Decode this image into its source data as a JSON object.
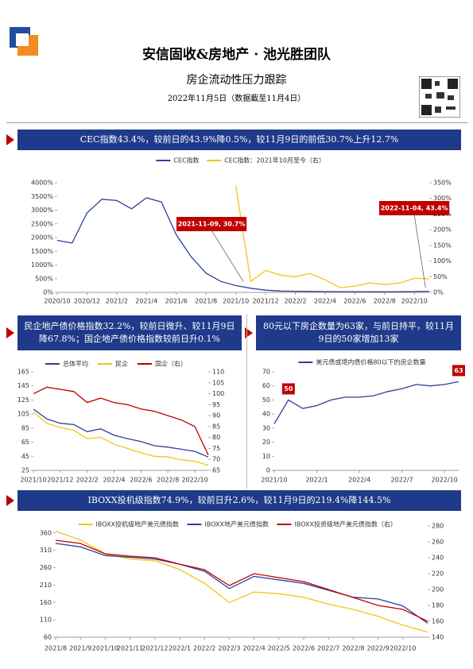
{
  "header": {
    "title": "安信固收&房地产 · 池光胜团队",
    "subtitle": "房企流动性压力跟踪",
    "date": "2022年11月5日（数据截至11月4日）"
  },
  "banners": [
    "CEC指数43.4%，较前日的43.9%降0.5%，较11月9日的前低30.7%上升12.7%",
    "民企地产债价格指数32.2%，较前日微升、较11月9日降67.8%；国企地产债价格指数较前日升0.1%",
    "80元以下房企数量为63家，与前日持平，较11月9日的50家增加13家",
    "IBOXX投机级指数74.9%，较前日升2.6%，较11月9日的219.4%降144.5%"
  ],
  "chart_data": [
    {
      "type": "line",
      "categories": [
        "2020/10",
        null,
        "2020/12",
        null,
        "2021/2",
        null,
        "2021/4",
        null,
        "2021/6",
        null,
        "2021/8",
        null,
        "2021/10",
        null,
        "2021/12",
        null,
        "2022/2",
        null,
        "2022/4",
        null,
        "2022/6",
        null,
        "2022/8",
        null,
        "2022/10",
        null
      ],
      "series": [
        {
          "name": "CEC指数",
          "color": "#2e3f9e",
          "values": [
            1900,
            1800,
            2900,
            3400,
            3350,
            3050,
            3450,
            3300,
            2100,
            1300,
            700,
            400,
            250,
            150,
            80,
            50,
            40,
            35,
            30,
            25,
            25,
            20,
            20,
            25,
            30,
            40
          ]
        },
        {
          "name": "CEC指数：2021年10月至今（右）",
          "color": "#f5c518",
          "axis": "y2",
          "values": [
            null,
            null,
            null,
            null,
            null,
            null,
            null,
            null,
            null,
            null,
            null,
            null,
            340,
            35,
            70,
            55,
            50,
            60,
            40,
            15,
            20,
            30,
            25,
            30,
            45,
            43.4
          ]
        }
      ],
      "ylim": [
        0,
        4000
      ],
      "yticks": [
        {
          "value": 0,
          "label": "0%"
        },
        {
          "value": 500,
          "label": "500%"
        },
        {
          "value": 1000,
          "label": "1000%"
        },
        {
          "value": 1500,
          "label": "1500%"
        },
        {
          "value": 2000,
          "label": "2000%"
        },
        {
          "value": 2500,
          "label": "2500%"
        },
        {
          "value": 3000,
          "label": "3000%"
        },
        {
          "value": 3500,
          "label": "3500%"
        },
        {
          "value": 4000,
          "label": "4000%"
        }
      ],
      "y2lim": [
        0,
        350
      ],
      "y2ticks": [
        {
          "value": 0,
          "label": "0%"
        },
        {
          "value": 50,
          "label": "50%"
        },
        {
          "value": 100,
          "label": "100%"
        },
        {
          "value": 150,
          "label": "150%"
        },
        {
          "value": 200,
          "label": "200%"
        },
        {
          "value": 250,
          "label": "250%"
        },
        {
          "value": 300,
          "label": "300%"
        },
        {
          "value": 350,
          "label": "350%"
        }
      ],
      "annotations": [
        {
          "text": "2021-11-09, 30.7%"
        },
        {
          "text": "2022-11-04, 43.4%"
        }
      ]
    },
    {
      "type": "line",
      "categories": [
        "2021/10",
        null,
        "2021/12",
        null,
        "2022/2",
        null,
        "2022/4",
        null,
        "2022/6",
        null,
        "2022/8",
        null,
        "2022/10",
        null
      ],
      "series": [
        {
          "name": "总体平均",
          "color": "#2e3f9e",
          "values": [
            112,
            98,
            92,
            90,
            80,
            84,
            75,
            70,
            66,
            60,
            58,
            55,
            52,
            44
          ]
        },
        {
          "name": "民企",
          "color": "#f5c518",
          "values": [
            108,
            92,
            86,
            82,
            70,
            72,
            62,
            56,
            50,
            45,
            44,
            40,
            38,
            32.2
          ]
        },
        {
          "name": "国企（右）",
          "color": "#c00000",
          "axis": "y2",
          "values": [
            100,
            103,
            102,
            101,
            96,
            98,
            96,
            95,
            93,
            92,
            90,
            88,
            85,
            72
          ]
        }
      ],
      "ylim": [
        25,
        165
      ],
      "yticks": [
        25,
        45,
        65,
        85,
        105,
        125,
        145,
        165
      ],
      "y2lim": [
        65,
        110
      ],
      "y2ticks": [
        65,
        70,
        75,
        80,
        85,
        90,
        95,
        100,
        105,
        110
      ]
    },
    {
      "type": "line",
      "categories": [
        "2021/10",
        null,
        null,
        "2022/1",
        null,
        null,
        "2022/4",
        null,
        null,
        "2022/7",
        null,
        null,
        "2022/10",
        null
      ],
      "series": [
        {
          "name": "美元债或境内债价格80以下的房企数量",
          "color": "#2e3f9e",
          "values": [
            33,
            50,
            44,
            46,
            50,
            52,
            52,
            53,
            56,
            58,
            61,
            60,
            61,
            63
          ],
          "value_labels": [
            null,
            "50",
            null,
            null,
            null,
            null,
            null,
            null,
            null,
            null,
            null,
            null,
            null,
            "63"
          ]
        }
      ],
      "ylim": [
        0,
        70
      ],
      "yticks": [
        0,
        10,
        20,
        30,
        40,
        50,
        60,
        70
      ]
    },
    {
      "type": "line",
      "categories": [
        "2021/8",
        "2021/9",
        "2021/10",
        "2021/11",
        "2021/12",
        "2022/1",
        "2022/2",
        "2022/3",
        "2022/4",
        "2022/5",
        "2022/6",
        "2022/7",
        "2022/8",
        "2022/9",
        "2022/10",
        null
      ],
      "series": [
        {
          "name": "IBOXX投机级地产美元债指数",
          "color": "#f5c518",
          "values": [
            365,
            340,
            300,
            285,
            280,
            255,
            215,
            160,
            190,
            185,
            175,
            155,
            140,
            120,
            95,
            74.9
          ]
        },
        {
          "name": "IBOXX地产美元债指数",
          "color": "#2e3f9e",
          "values": [
            330,
            320,
            295,
            290,
            285,
            270,
            250,
            200,
            235,
            225,
            215,
            195,
            175,
            170,
            150,
            100
          ]
        },
        {
          "name": "IBOXX投资级地产美元债指数（右）",
          "color": "#c00000",
          "axis": "y2",
          "values": [
            262,
            258,
            245,
            242,
            240,
            232,
            225,
            205,
            220,
            215,
            210,
            200,
            190,
            180,
            175,
            160
          ]
        }
      ],
      "ylim": [
        60,
        380
      ],
      "yticks": [
        60,
        110,
        160,
        210,
        260,
        310,
        360
      ],
      "y2lim": [
        140,
        280
      ],
      "y2ticks": [
        140,
        160,
        180,
        200,
        220,
        240,
        260,
        280
      ]
    }
  ]
}
